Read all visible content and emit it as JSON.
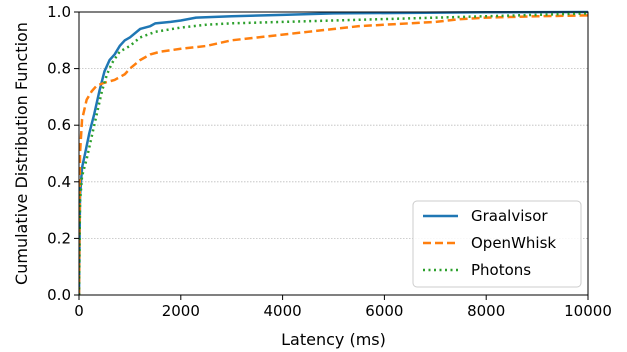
{
  "chart_data": {
    "type": "line",
    "xlabel": "Latency (ms)",
    "ylabel": "Cumulative Distribution Function",
    "xlim": [
      0,
      10000
    ],
    "ylim": [
      0,
      1.0
    ],
    "x_ticks": [
      "0",
      "2000",
      "4000",
      "6000",
      "8000",
      "10000"
    ],
    "x_tick_values": [
      0,
      2000,
      4000,
      6000,
      8000,
      10000
    ],
    "y_ticks": [
      "0.0",
      "0.2",
      "0.4",
      "0.6",
      "0.8",
      "1.0"
    ],
    "y_tick_values": [
      0,
      0.2,
      0.4,
      0.6,
      0.8,
      1.0
    ],
    "grid": "horizontal dotted",
    "legend_position": "lower-right",
    "series": [
      {
        "name": "Graalvisor",
        "color": "#1f77b4",
        "style": "solid",
        "points": [
          [
            0,
            0
          ],
          [
            20,
            0.35
          ],
          [
            60,
            0.45
          ],
          [
            120,
            0.5
          ],
          [
            200,
            0.57
          ],
          [
            300,
            0.64
          ],
          [
            400,
            0.72
          ],
          [
            500,
            0.79
          ],
          [
            600,
            0.83
          ],
          [
            700,
            0.85
          ],
          [
            800,
            0.88
          ],
          [
            900,
            0.9
          ],
          [
            1000,
            0.91
          ],
          [
            1200,
            0.94
          ],
          [
            1400,
            0.95
          ],
          [
            1500,
            0.96
          ],
          [
            1800,
            0.965
          ],
          [
            2000,
            0.97
          ],
          [
            2300,
            0.98
          ],
          [
            3000,
            0.985
          ],
          [
            4000,
            0.99
          ],
          [
            5000,
            0.995
          ],
          [
            6500,
            0.997
          ],
          [
            8000,
            0.999
          ],
          [
            10000,
            1.0
          ]
        ]
      },
      {
        "name": "OpenWhisk",
        "color": "#ff7f0e",
        "style": "dashed",
        "points": [
          [
            0,
            0
          ],
          [
            20,
            0.5
          ],
          [
            60,
            0.62
          ],
          [
            150,
            0.69
          ],
          [
            250,
            0.72
          ],
          [
            350,
            0.74
          ],
          [
            500,
            0.75
          ],
          [
            700,
            0.76
          ],
          [
            900,
            0.78
          ],
          [
            1000,
            0.8
          ],
          [
            1200,
            0.83
          ],
          [
            1400,
            0.85
          ],
          [
            1600,
            0.86
          ],
          [
            2000,
            0.87
          ],
          [
            2500,
            0.88
          ],
          [
            3000,
            0.9
          ],
          [
            3500,
            0.91
          ],
          [
            4000,
            0.92
          ],
          [
            4500,
            0.93
          ],
          [
            5000,
            0.94
          ],
          [
            5500,
            0.95
          ],
          [
            6000,
            0.955
          ],
          [
            7000,
            0.965
          ],
          [
            7500,
            0.975
          ],
          [
            8000,
            0.98
          ],
          [
            9000,
            0.985
          ],
          [
            10000,
            0.988
          ]
        ]
      },
      {
        "name": "Photons",
        "color": "#2ca02c",
        "style": "dotted",
        "points": [
          [
            0,
            0
          ],
          [
            20,
            0.33
          ],
          [
            60,
            0.42
          ],
          [
            150,
            0.48
          ],
          [
            250,
            0.56
          ],
          [
            350,
            0.64
          ],
          [
            450,
            0.72
          ],
          [
            550,
            0.78
          ],
          [
            650,
            0.82
          ],
          [
            800,
            0.86
          ],
          [
            1000,
            0.88
          ],
          [
            1200,
            0.91
          ],
          [
            1500,
            0.93
          ],
          [
            2000,
            0.945
          ],
          [
            2500,
            0.955
          ],
          [
            3000,
            0.96
          ],
          [
            4000,
            0.965
          ],
          [
            5000,
            0.97
          ],
          [
            6000,
            0.975
          ],
          [
            7000,
            0.98
          ],
          [
            8000,
            0.985
          ],
          [
            9000,
            0.99
          ],
          [
            10000,
            0.995
          ]
        ]
      }
    ]
  }
}
